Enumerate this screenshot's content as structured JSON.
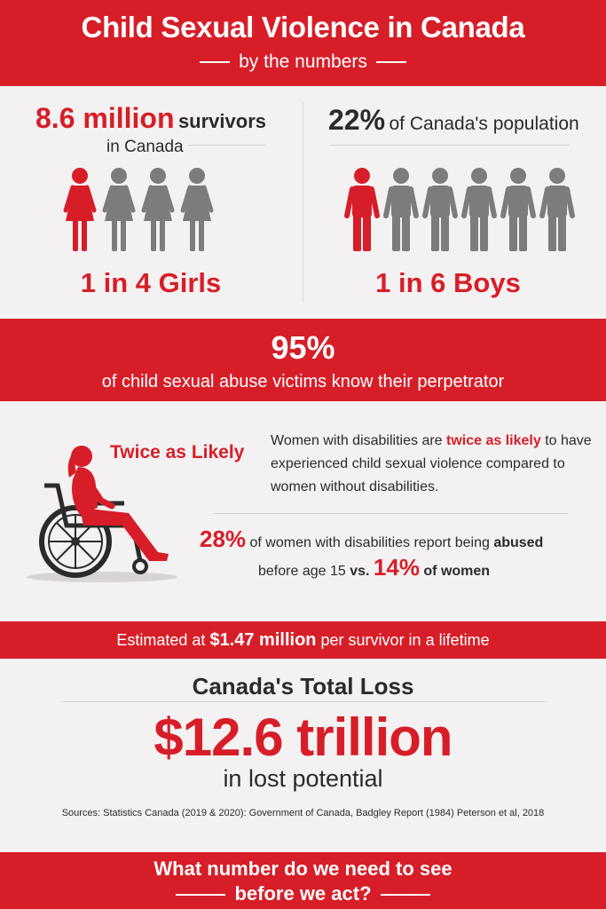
{
  "header": {
    "title": "Child Sexual Violence in Canada",
    "subtitle": "by the numbers"
  },
  "survivors": {
    "number": "8.6 million",
    "word": "survivors",
    "location": "in Canada"
  },
  "girls": {
    "ratio": "1 in 4 Girls",
    "highlighted": 1,
    "total": 4
  },
  "population": {
    "percent": "22%",
    "text": "of Canada's population"
  },
  "boys": {
    "ratio": "1 in 6 Boys",
    "highlighted": 1,
    "total": 6
  },
  "know_perpetrator": {
    "percent": "95%",
    "text": "of child sexual abuse victims know their perpetrator"
  },
  "disability": {
    "label": "Twice as Likely",
    "para_pre": "Women with disabilities are",
    "para_bold": "twice as likely",
    "para_post": "to have experienced child sexual violence compared to women without disabilities.",
    "stat1_percent": "28%",
    "stat1_pre": "of women with disabilities report being",
    "stat1_bold": "abused",
    "stat2_pre": "before age 15",
    "stat2_vs": "vs.",
    "stat2_percent": "14%",
    "stat2_post": "of women"
  },
  "estimate": {
    "pre": "Estimated at",
    "amount": "$1.47 million",
    "post": "per survivor in a lifetime"
  },
  "total_loss": {
    "title": "Canada's Total Loss",
    "amount": "$12.6 trillion",
    "sub": "in lost potential"
  },
  "sources": "Sources: Statistics Canada (2019 & 2020): Government of Canada, Badgley Report (1984) Peterson et al, 2018",
  "footer": {
    "line1": "What number do we need to see",
    "line2": "before we act?"
  },
  "colors": {
    "accent": "#d71e28",
    "figure_gray": "#7c7c7c",
    "background": "#f3f1f1"
  }
}
